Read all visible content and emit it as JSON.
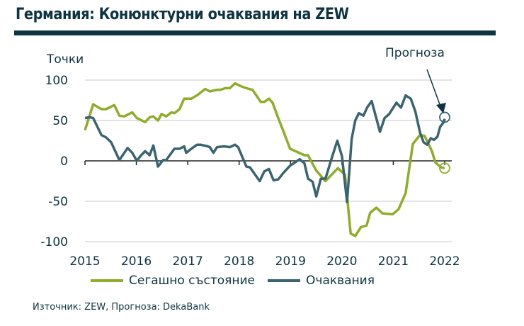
{
  "title": "Германия: Конюнктурни очаквания на ZEW",
  "source": "Източник: ZEW, Прогноза: DekaBank",
  "colors": {
    "current": "#8fac2b",
    "expectations": "#3b6470",
    "text": "#0e3441",
    "grid": "#c8c8c8"
  },
  "chart_data": {
    "type": "line",
    "title": "Германия: Конюнктурни очаквания на ZEW",
    "ylabel": "Точки",
    "xlabel": "",
    "ylim": [
      -100,
      100
    ],
    "xlim": [
      2015,
      2022
    ],
    "yticks": [
      "100",
      "50",
      "0",
      "-50",
      "-100"
    ],
    "xticks": [
      "2015",
      "2016",
      "2017",
      "2018",
      "2019",
      "2020",
      "2021",
      "2022"
    ],
    "grid": true,
    "legend": "bottom",
    "annotation": "Прогноза",
    "series": [
      {
        "name": "Сегашно състояние",
        "key": "current",
        "points": [
          [
            2015,
            38
          ],
          [
            2015.16,
            70
          ],
          [
            2015.32,
            64
          ],
          [
            2015.41,
            64
          ],
          [
            2015.57,
            69
          ],
          [
            2015.67,
            56
          ],
          [
            2015.76,
            55
          ],
          [
            2015.92,
            60
          ],
          [
            2016.01,
            53
          ],
          [
            2016.17,
            48
          ],
          [
            2016.26,
            54
          ],
          [
            2016.33,
            55
          ],
          [
            2016.42,
            50
          ],
          [
            2016.49,
            58
          ],
          [
            2016.58,
            55
          ],
          [
            2016.68,
            60
          ],
          [
            2016.74,
            59
          ],
          [
            2016.84,
            64
          ],
          [
            2016.93,
            77
          ],
          [
            2017.07,
            77
          ],
          [
            2017.2,
            82
          ],
          [
            2017.34,
            89
          ],
          [
            2017.43,
            86
          ],
          [
            2017.57,
            88
          ],
          [
            2017.64,
            88
          ],
          [
            2017.73,
            90
          ],
          [
            2017.82,
            90
          ],
          [
            2017.92,
            96
          ],
          [
            2018.05,
            92
          ],
          [
            2018.19,
            89
          ],
          [
            2018.26,
            88
          ],
          [
            2018.42,
            73
          ],
          [
            2018.49,
            73
          ],
          [
            2018.58,
            77
          ],
          [
            2018.65,
            72
          ],
          [
            2018.76,
            53
          ],
          [
            2018.86,
            37
          ],
          [
            2018.99,
            15
          ],
          [
            2019.27,
            7
          ],
          [
            2019.34,
            7
          ],
          [
            2019.5,
            -12
          ],
          [
            2019.68,
            -25
          ],
          [
            2019.92,
            -9
          ],
          [
            2020.06,
            -17
          ],
          [
            2020.17,
            -90
          ],
          [
            2020.26,
            -93
          ],
          [
            2020.37,
            -82
          ],
          [
            2020.48,
            -80
          ],
          [
            2020.55,
            -64
          ],
          [
            2020.67,
            -58
          ],
          [
            2020.79,
            -65
          ],
          [
            2020.99,
            -66
          ],
          [
            2021.1,
            -60
          ],
          [
            2021.24,
            -40
          ],
          [
            2021.38,
            21
          ],
          [
            2021.52,
            32
          ],
          [
            2021.61,
            31
          ],
          [
            2021.75,
            12
          ],
          [
            2021.82,
            -2
          ],
          [
            2021.93,
            -8
          ],
          [
            2022,
            -9
          ]
        ],
        "forecast": -9
      },
      {
        "name": "Очаквания",
        "key": "expectations",
        "points": [
          [
            2015,
            53
          ],
          [
            2015.09,
            54
          ],
          [
            2015.16,
            53
          ],
          [
            2015.32,
            32
          ],
          [
            2015.41,
            29
          ],
          [
            2015.51,
            23
          ],
          [
            2015.67,
            1
          ],
          [
            2015.83,
            16
          ],
          [
            2015.92,
            10
          ],
          [
            2016.01,
            0
          ],
          [
            2016.08,
            6
          ],
          [
            2016.17,
            12
          ],
          [
            2016.26,
            7
          ],
          [
            2016.33,
            19
          ],
          [
            2016.42,
            -7
          ],
          [
            2016.52,
            1
          ],
          [
            2016.58,
            1
          ],
          [
            2016.74,
            15
          ],
          [
            2016.84,
            15
          ],
          [
            2016.93,
            18
          ],
          [
            2016.97,
            10
          ],
          [
            2017.07,
            15
          ],
          [
            2017.18,
            20
          ],
          [
            2017.25,
            20
          ],
          [
            2017.39,
            18
          ],
          [
            2017.43,
            17
          ],
          [
            2017.5,
            10
          ],
          [
            2017.57,
            17
          ],
          [
            2017.71,
            18
          ],
          [
            2017.82,
            17
          ],
          [
            2017.92,
            20
          ],
          [
            2017.98,
            17
          ],
          [
            2018.14,
            -7
          ],
          [
            2018.21,
            -8
          ],
          [
            2018.4,
            -25
          ],
          [
            2018.49,
            -13
          ],
          [
            2018.58,
            -10
          ],
          [
            2018.67,
            -24
          ],
          [
            2018.76,
            -23
          ],
          [
            2018.86,
            -15
          ],
          [
            2018.99,
            -6
          ],
          [
            2019.18,
            2
          ],
          [
            2019.27,
            -3
          ],
          [
            2019.34,
            -22
          ],
          [
            2019.43,
            -26
          ],
          [
            2019.5,
            -44
          ],
          [
            2019.59,
            -22
          ],
          [
            2019.68,
            -22
          ],
          [
            2019.8,
            3
          ],
          [
            2019.91,
            25
          ],
          [
            2020,
            6
          ],
          [
            2020.1,
            -51
          ],
          [
            2020.19,
            27
          ],
          [
            2020.26,
            50
          ],
          [
            2020.33,
            59
          ],
          [
            2020.42,
            56
          ],
          [
            2020.49,
            66
          ],
          [
            2020.58,
            74
          ],
          [
            2020.74,
            36
          ],
          [
            2020.83,
            53
          ],
          [
            2020.92,
            58
          ],
          [
            2021.06,
            72
          ],
          [
            2021.15,
            66
          ],
          [
            2021.24,
            81
          ],
          [
            2021.34,
            77
          ],
          [
            2021.43,
            61
          ],
          [
            2021.52,
            35
          ],
          [
            2021.59,
            23
          ],
          [
            2021.66,
            20
          ],
          [
            2021.73,
            28
          ],
          [
            2021.79,
            26
          ],
          [
            2021.86,
            30
          ],
          [
            2021.91,
            42
          ],
          [
            2021.98,
            48
          ],
          [
            2022,
            52
          ]
        ],
        "forecast": 54
      }
    ]
  }
}
